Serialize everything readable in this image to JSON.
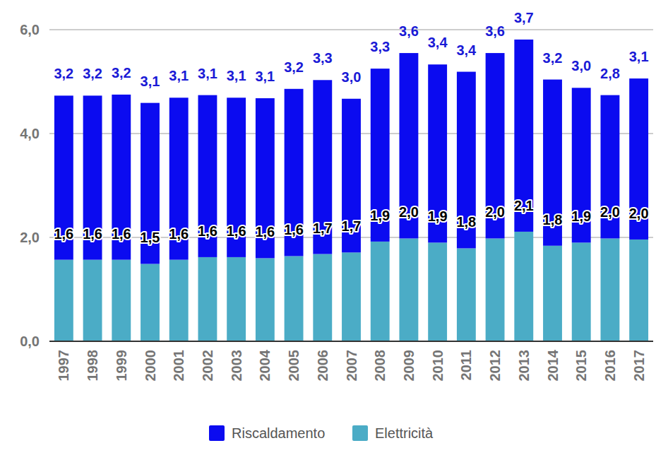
{
  "chart_data": {
    "type": "bar",
    "stacked": true,
    "data_labels": true,
    "grid": true,
    "legend": "bottom",
    "categories": [
      "1997",
      "1998",
      "1999",
      "2000",
      "2001",
      "2002",
      "2003",
      "2004",
      "2005",
      "2006",
      "2007",
      "2008",
      "2009",
      "2010",
      "2011",
      "2012",
      "2013",
      "2014",
      "2015",
      "2016",
      "2017"
    ],
    "ylim": [
      0,
      6
    ],
    "yticks": [
      {
        "value": 0,
        "label": "0,0"
      },
      {
        "value": 2,
        "label": "2,0"
      },
      {
        "value": 4,
        "label": "4,0"
      },
      {
        "value": 6,
        "label": "6,0"
      }
    ],
    "series": [
      {
        "name": "Elettricità",
        "color": "#4bacc6",
        "values": [
          1.57,
          1.57,
          1.57,
          1.49,
          1.57,
          1.62,
          1.62,
          1.6,
          1.64,
          1.68,
          1.71,
          1.92,
          1.98,
          1.9,
          1.79,
          1.98,
          2.11,
          1.84,
          1.9,
          1.98,
          1.96
        ],
        "value_labels": [
          "1,6",
          "1,6",
          "1,6",
          "1,5",
          "1,6",
          "1,6",
          "1,6",
          "1,6",
          "1,6",
          "1,7",
          "1,7",
          "1,9",
          "2,0",
          "1,9",
          "1,8",
          "2,0",
          "2,1",
          "1,8",
          "1,9",
          "2,0",
          "2,0"
        ]
      },
      {
        "name": "Riscaldamento",
        "color": "#0b0bf0",
        "values": [
          3.16,
          3.16,
          3.18,
          3.1,
          3.12,
          3.12,
          3.07,
          3.08,
          3.22,
          3.35,
          2.96,
          3.33,
          3.57,
          3.43,
          3.4,
          3.57,
          3.7,
          3.2,
          2.98,
          2.76,
          3.1
        ],
        "value_labels": [
          "3,2",
          "3,2",
          "3,2",
          "3,1",
          "3,1",
          "3,1",
          "3,1",
          "3,1",
          "3,2",
          "3,3",
          "3,0",
          "3,3",
          "3,6",
          "3,4",
          "3,4",
          "3,6",
          "3,7",
          "3,2",
          "3,0",
          "2,8",
          "3,1"
        ]
      }
    ]
  }
}
